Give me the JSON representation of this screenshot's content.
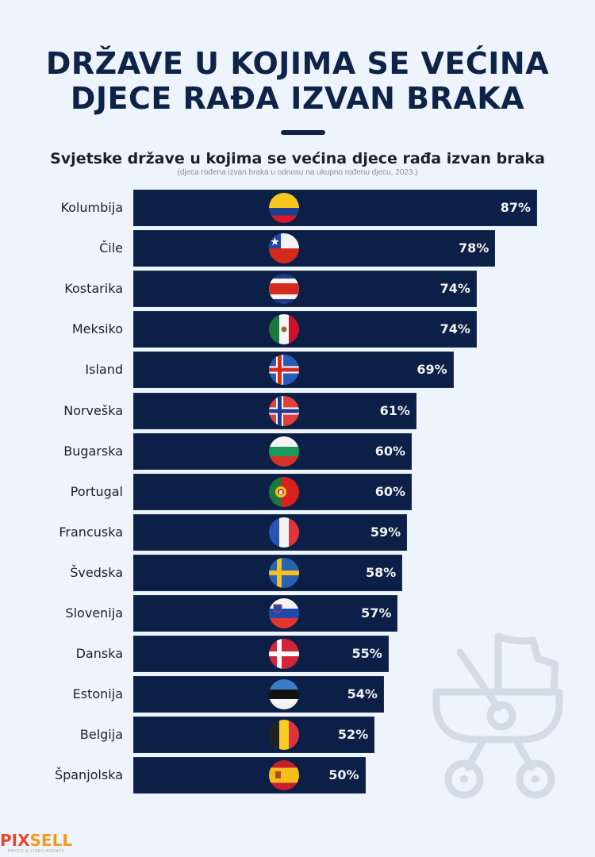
{
  "title_line1": "DRŽAVE U KOJIMA SE VEĆINA",
  "title_line2": "DJECE RAĐA IZVAN BRAKA",
  "chart_data": {
    "type": "bar",
    "orientation": "horizontal",
    "title": "Svjetske države u kojima se većina djece rađa izvan braka",
    "subtitle": "(djeca rođena izvan braka u odnosu na ukupno rođenu djecu, 2023.)",
    "xlabel": "",
    "ylabel": "",
    "unit": "%",
    "xlim": [
      0,
      87
    ],
    "categories": [
      "Kolumbija",
      "Čile",
      "Kostarika",
      "Meksiko",
      "Island",
      "Norveška",
      "Bugarska",
      "Portugal",
      "Francuska",
      "Švedska",
      "Slovenija",
      "Danska",
      "Estonija",
      "Belgija",
      "Španjolska"
    ],
    "values": [
      87,
      78,
      74,
      74,
      69,
      61,
      60,
      60,
      59,
      58,
      57,
      55,
      54,
      52,
      50
    ],
    "labels": [
      "87%",
      "78%",
      "74%",
      "74%",
      "69%",
      "61%",
      "60%",
      "60%",
      "59%",
      "58%",
      "57%",
      "55%",
      "54%",
      "52%",
      "50%"
    ],
    "flags": [
      "colombia-flag-icon",
      "chile-flag-icon",
      "costa-rica-flag-icon",
      "mexico-flag-icon",
      "iceland-flag-icon",
      "norway-flag-icon",
      "bulgaria-flag-icon",
      "portugal-flag-icon",
      "france-flag-icon",
      "sweden-flag-icon",
      "slovenia-flag-icon",
      "denmark-flag-icon",
      "estonia-flag-icon",
      "belgium-flag-icon",
      "spain-flag-icon"
    ],
    "bar_color": "#0b1f47",
    "grid": false,
    "legend": "none"
  },
  "decor": {
    "icon": "baby-stroller-icon",
    "color": "#d3dbe6"
  },
  "logo": {
    "name": "PIXSELL",
    "part1": "PIX",
    "part2": "SELL",
    "tagline": "PHOTO & VIDEO AGENCY",
    "color1": "#e8462a",
    "color2": "#f39a1e"
  }
}
